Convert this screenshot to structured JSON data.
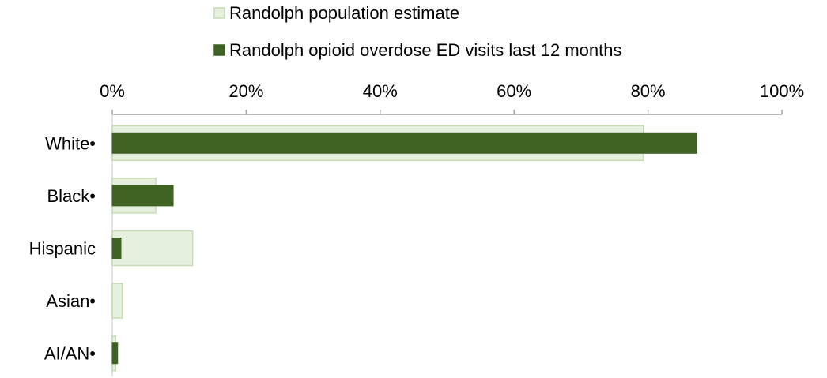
{
  "chart_data": {
    "type": "bar",
    "orientation": "horizontal",
    "title": "",
    "xlabel": "",
    "ylabel": "",
    "xlim": [
      0,
      100
    ],
    "x_ticks": [
      0,
      20,
      40,
      60,
      80,
      100
    ],
    "x_tick_labels": [
      "0%",
      "20%",
      "40%",
      "60%",
      "80%",
      "100%"
    ],
    "grid": false,
    "legend_position": "top",
    "categories": [
      "White•",
      "Black•",
      "Hispanic",
      "Asian•",
      "AI/AN•"
    ],
    "series": [
      {
        "name": "Randolph population estimate",
        "values": [
          79.3,
          6.5,
          12.0,
          1.5,
          0.5
        ],
        "fill": "#e6f0df",
        "stroke": "#c5dcb4"
      },
      {
        "name": "Randolph opioid overdose ED visits last 12 months",
        "values": [
          87.3,
          9.1,
          1.3,
          0,
          0.8
        ],
        "fill": "#3e6323",
        "stroke": "#3e6323"
      }
    ]
  }
}
